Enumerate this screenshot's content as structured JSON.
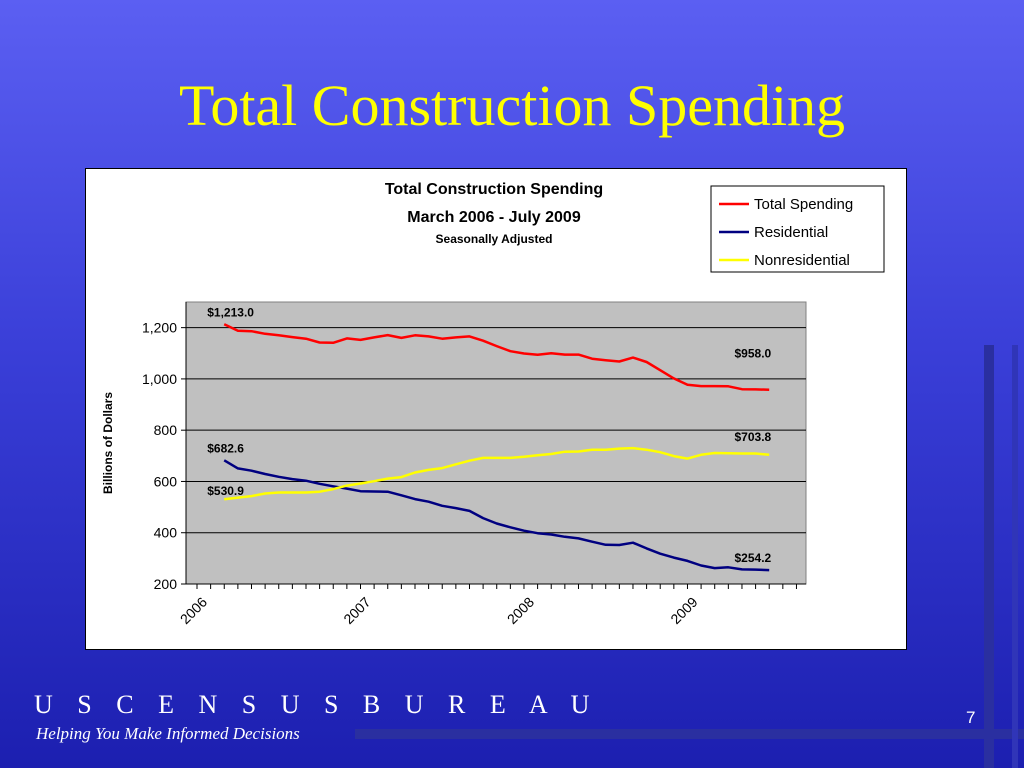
{
  "slide": {
    "title": "Total Construction Spending",
    "brand": "U S C E N S U S B U R E A U",
    "tagline": "Helping You Make Informed Decisions",
    "page_number": "7"
  },
  "chart_data": {
    "type": "line",
    "title": "Total Construction Spending",
    "subtitle": "March 2006 - July 2009",
    "note": "Seasonally Adjusted",
    "xlabel": "",
    "ylabel": "Billions of Dollars",
    "ylim": [
      200,
      1300
    ],
    "yticks": [
      200,
      400,
      600,
      800,
      1000,
      1200
    ],
    "ytick_labels": [
      "200",
      "400",
      "600",
      "800",
      "1,000",
      "1,200"
    ],
    "xlim": [
      "2006-01",
      "2009-09"
    ],
    "xtick_labels": [
      {
        "label": "2006",
        "month": "2006-01"
      },
      {
        "label": "2007",
        "month": "2007-01"
      },
      {
        "label": "2008",
        "month": "2008-01"
      },
      {
        "label": "2009",
        "month": "2009-01"
      }
    ],
    "grid": true,
    "legend_position": "top-right",
    "plot_background": "#c0c0c0",
    "x": [
      "2006-03",
      "2006-04",
      "2006-05",
      "2006-06",
      "2006-07",
      "2006-08",
      "2006-09",
      "2006-10",
      "2006-11",
      "2006-12",
      "2007-01",
      "2007-02",
      "2007-03",
      "2007-04",
      "2007-05",
      "2007-06",
      "2007-07",
      "2007-08",
      "2007-09",
      "2007-10",
      "2007-11",
      "2007-12",
      "2008-01",
      "2008-02",
      "2008-03",
      "2008-04",
      "2008-05",
      "2008-06",
      "2008-07",
      "2008-08",
      "2008-09",
      "2008-10",
      "2008-11",
      "2008-12",
      "2009-01",
      "2009-02",
      "2009-03",
      "2009-04",
      "2009-05",
      "2009-06",
      "2009-07"
    ],
    "series": [
      {
        "name": "Total Spending",
        "color": "#ff0000",
        "values": [
          1213,
          1188,
          1186,
          1176,
          1170,
          1163,
          1157,
          1142,
          1141,
          1158,
          1152,
          1162,
          1171,
          1160,
          1170,
          1166,
          1157,
          1162,
          1166,
          1149,
          1128,
          1108,
          1099,
          1094,
          1100,
          1095,
          1095,
          1079,
          1073,
          1068,
          1083,
          1066,
          1034,
          1002,
          977,
          972,
          972,
          971,
          960,
          959,
          958
        ]
      },
      {
        "name": "Residential",
        "color": "#000080",
        "values": [
          682.6,
          651,
          642,
          629,
          618,
          609,
          603,
          591,
          581,
          572,
          562,
          561,
          560,
          546,
          531,
          521,
          505,
          496,
          485,
          457,
          436,
          421,
          408,
          398,
          393,
          384,
          378,
          365,
          353,
          352,
          361,
          339,
          318,
          303,
          290,
          272,
          262,
          265,
          257,
          256,
          254.2
        ]
      },
      {
        "name": "Nonresidential",
        "color": "#ffff00",
        "values": [
          530.9,
          537,
          543,
          553,
          557,
          557,
          557,
          560,
          570,
          584,
          592,
          601,
          611,
          617,
          635,
          645,
          652,
          667,
          681,
          692,
          692,
          692,
          696,
          702,
          707,
          716,
          717,
          724,
          724,
          728,
          730,
          724,
          714,
          699,
          689,
          704,
          711,
          710,
          709,
          709,
          703.8
        ]
      }
    ],
    "annotations": [
      {
        "text": "$1,213.0",
        "series": "Total Spending",
        "month": "2006-03"
      },
      {
        "text": "$958.0",
        "series": "Total Spending",
        "month": "2009-07"
      },
      {
        "text": "$682.6",
        "series": "Residential",
        "month": "2006-03"
      },
      {
        "text": "$530.9",
        "series": "Nonresidential",
        "month": "2006-03"
      },
      {
        "text": "$703.8",
        "series": "Nonresidential",
        "month": "2009-07"
      },
      {
        "text": "$254.2",
        "series": "Residential",
        "month": "2009-07"
      }
    ]
  }
}
